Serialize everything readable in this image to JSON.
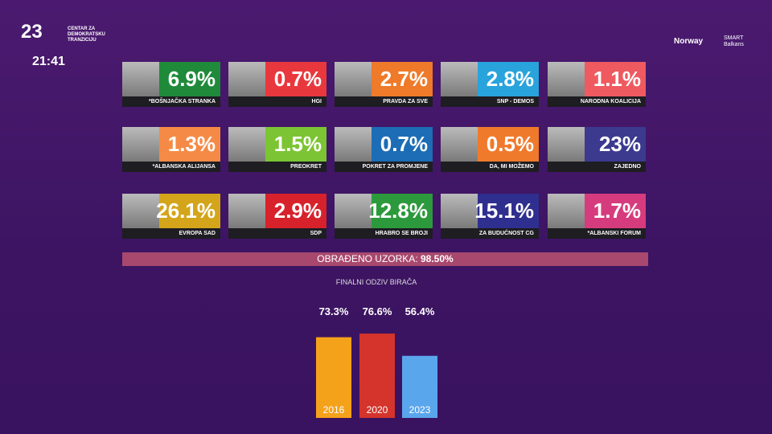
{
  "logo": {
    "mark": "23",
    "text": "CENTAR ZA DEMOKRATSKU TRANZICIJU",
    "time": "21:41"
  },
  "sponsors": [
    "Norway",
    "SMART Balkans"
  ],
  "parties": [
    {
      "name": "*BOŠNJAČKA STRANKA",
      "label": "6.9%",
      "color": "#1f8a3a"
    },
    {
      "name": "HGI",
      "label": "0.7%",
      "color": "#e8383d"
    },
    {
      "name": "PRAVDA ZA SVE",
      "label": "2.7%",
      "color": "#ee7a2a"
    },
    {
      "name": "SNP - DEMOS",
      "label": "2.8%",
      "color": "#29a3dc"
    },
    {
      "name": "NARODNA KOALICIJA",
      "label": "1.1%",
      "color": "#ee5a60"
    },
    {
      "name": "*ALBANSKA ALIJANSA",
      "label": "1.3%",
      "color": "#f58a46"
    },
    {
      "name": "PREOKRET",
      "label": "1.5%",
      "color": "#7cc433"
    },
    {
      "name": "POKRET ZA PROMJENE",
      "label": "0.7%",
      "color": "#1c6db5"
    },
    {
      "name": "DA, MI MOŽEMO",
      "label": "0.5%",
      "color": "#f07a2c"
    },
    {
      "name": "ZAJEDNO",
      "label": "23%",
      "color": "#3b3a8f"
    },
    {
      "name": "EVROPA SAD",
      "label": "26.1%",
      "color": "#d4a51a"
    },
    {
      "name": "SDP",
      "label": "2.9%",
      "color": "#d7222b"
    },
    {
      "name": "HRABRO SE BROJI",
      "label": "12.8%",
      "color": "#2c9a3c"
    },
    {
      "name": "ZA BUDUĆNOST CG",
      "label": "15.1%",
      "color": "#2f2f8f"
    },
    {
      "name": "*ALBANSKI FORUM",
      "label": "1.7%",
      "color": "#d63c7d"
    }
  ],
  "processed": {
    "label": "OBRAĐENO UZORKA:",
    "value": "98.50%"
  },
  "chart_data": {
    "type": "bar",
    "title": "FINALNI ODZIV BIRAČA",
    "categories": [
      "2016",
      "2020",
      "2023"
    ],
    "values": [
      73.3,
      76.6,
      56.4
    ],
    "value_labels": [
      "73.3%",
      "76.6%",
      "56.4%"
    ],
    "colors": [
      "#f5a21b",
      "#d4342c",
      "#5aa6ec"
    ]
  }
}
